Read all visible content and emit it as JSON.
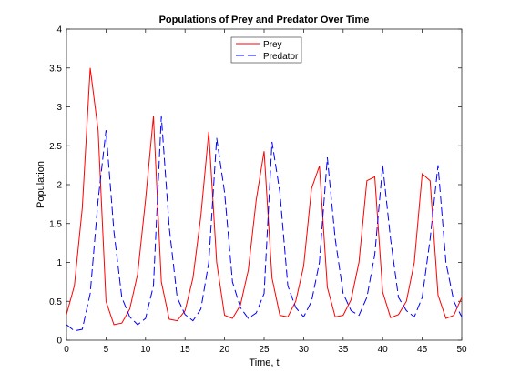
{
  "chart_data": {
    "type": "line",
    "title": "Populations of Prey and Predator Over Time",
    "xlabel": "Time, t",
    "ylabel": "Population",
    "xlim": [
      0,
      50
    ],
    "ylim": [
      0,
      4
    ],
    "xticks": [
      "0",
      "5",
      "10",
      "15",
      "20",
      "25",
      "30",
      "35",
      "40",
      "45",
      "50"
    ],
    "yticks": [
      "0",
      "0.5",
      "1",
      "1.5",
      "2",
      "2.5",
      "3",
      "3.5",
      "4"
    ],
    "grid": false,
    "legend": "top-center",
    "x": [
      0,
      1,
      2,
      3,
      4,
      5,
      6,
      7,
      8,
      9,
      10,
      11,
      12,
      13,
      14,
      15,
      16,
      17,
      18,
      19,
      20,
      21,
      22,
      23,
      24,
      25,
      26,
      27,
      28,
      29,
      30,
      31,
      32,
      33,
      34,
      35,
      36,
      37,
      38,
      39,
      40,
      41,
      42,
      43,
      44,
      45,
      46,
      47,
      48,
      49,
      50
    ],
    "series": [
      {
        "name": "Prey",
        "color": "#ff0000",
        "dash": "solid",
        "values": [
          0.33,
          0.7,
          1.7,
          3.5,
          2.7,
          0.5,
          0.2,
          0.22,
          0.4,
          0.85,
          1.8,
          2.88,
          0.75,
          0.27,
          0.25,
          0.38,
          0.8,
          1.6,
          2.68,
          1.0,
          0.32,
          0.28,
          0.45,
          0.9,
          1.8,
          2.43,
          0.8,
          0.32,
          0.3,
          0.5,
          0.95,
          1.95,
          2.24,
          0.68,
          0.3,
          0.32,
          0.52,
          1.0,
          2.05,
          2.1,
          0.62,
          0.29,
          0.33,
          0.5,
          1.0,
          2.14,
          2.05,
          0.58,
          0.28,
          0.32,
          0.55
        ]
      },
      {
        "name": "Predator",
        "color": "#0000ff",
        "dash": "dashed",
        "values": [
          0.2,
          0.12,
          0.14,
          0.6,
          1.8,
          2.7,
          1.4,
          0.55,
          0.3,
          0.2,
          0.28,
          0.7,
          2.88,
          1.45,
          0.55,
          0.33,
          0.25,
          0.4,
          1.0,
          2.6,
          1.9,
          0.75,
          0.42,
          0.28,
          0.35,
          0.6,
          2.55,
          1.9,
          0.7,
          0.42,
          0.3,
          0.5,
          1.0,
          2.35,
          1.3,
          0.6,
          0.38,
          0.32,
          0.55,
          1.1,
          2.25,
          1.3,
          0.55,
          0.38,
          0.3,
          0.55,
          1.3,
          2.25,
          1.0,
          0.5,
          0.3
        ]
      }
    ]
  }
}
